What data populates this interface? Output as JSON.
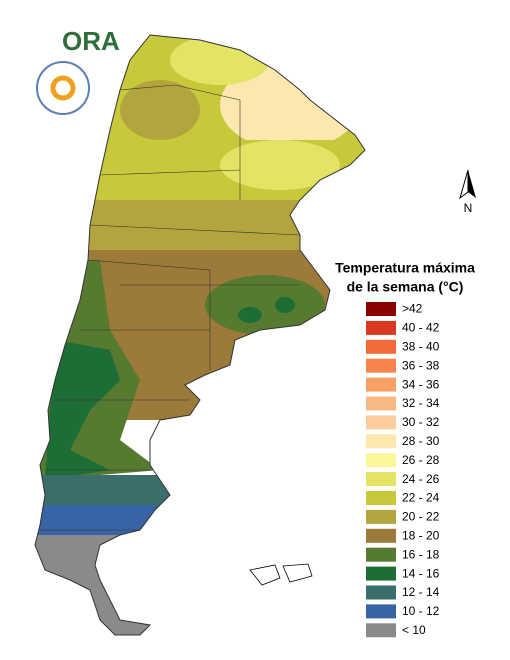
{
  "logo": {
    "text": "ORA"
  },
  "compass": {
    "label": "N"
  },
  "legend": {
    "title_lines": [
      "Temperatura máxima",
      "de la semana (°C)"
    ],
    "entries": [
      {
        "label": ">42",
        "color": "#8b0000"
      },
      {
        "label": "40 - 42",
        "color": "#d73a1f"
      },
      {
        "label": "38 - 40",
        "color": "#f26a3a"
      },
      {
        "label": "36 - 38",
        "color": "#f7834f"
      },
      {
        "label": "34 - 36",
        "color": "#f8a066"
      },
      {
        "label": "32 - 34",
        "color": "#f9b884"
      },
      {
        "label": "30 - 32",
        "color": "#fbcd9f"
      },
      {
        "label": "28 - 30",
        "color": "#fce7ae"
      },
      {
        "label": "26 - 28",
        "color": "#f8f79a"
      },
      {
        "label": "24 - 26",
        "color": "#e3e466"
      },
      {
        "label": "22 - 24",
        "color": "#c7c83a"
      },
      {
        "label": "20 - 22",
        "color": "#b3a53e"
      },
      {
        "label": "18 - 20",
        "color": "#9c7b3a"
      },
      {
        "label": "16 - 18",
        "color": "#567a30"
      },
      {
        "label": "14 - 16",
        "color": "#1d6d37"
      },
      {
        "label": "12 - 14",
        "color": "#3b6e6a"
      },
      {
        "label": "10 - 12",
        "color": "#3864a6"
      },
      {
        "label": "< 10",
        "color": "#8a8a8a"
      }
    ]
  }
}
